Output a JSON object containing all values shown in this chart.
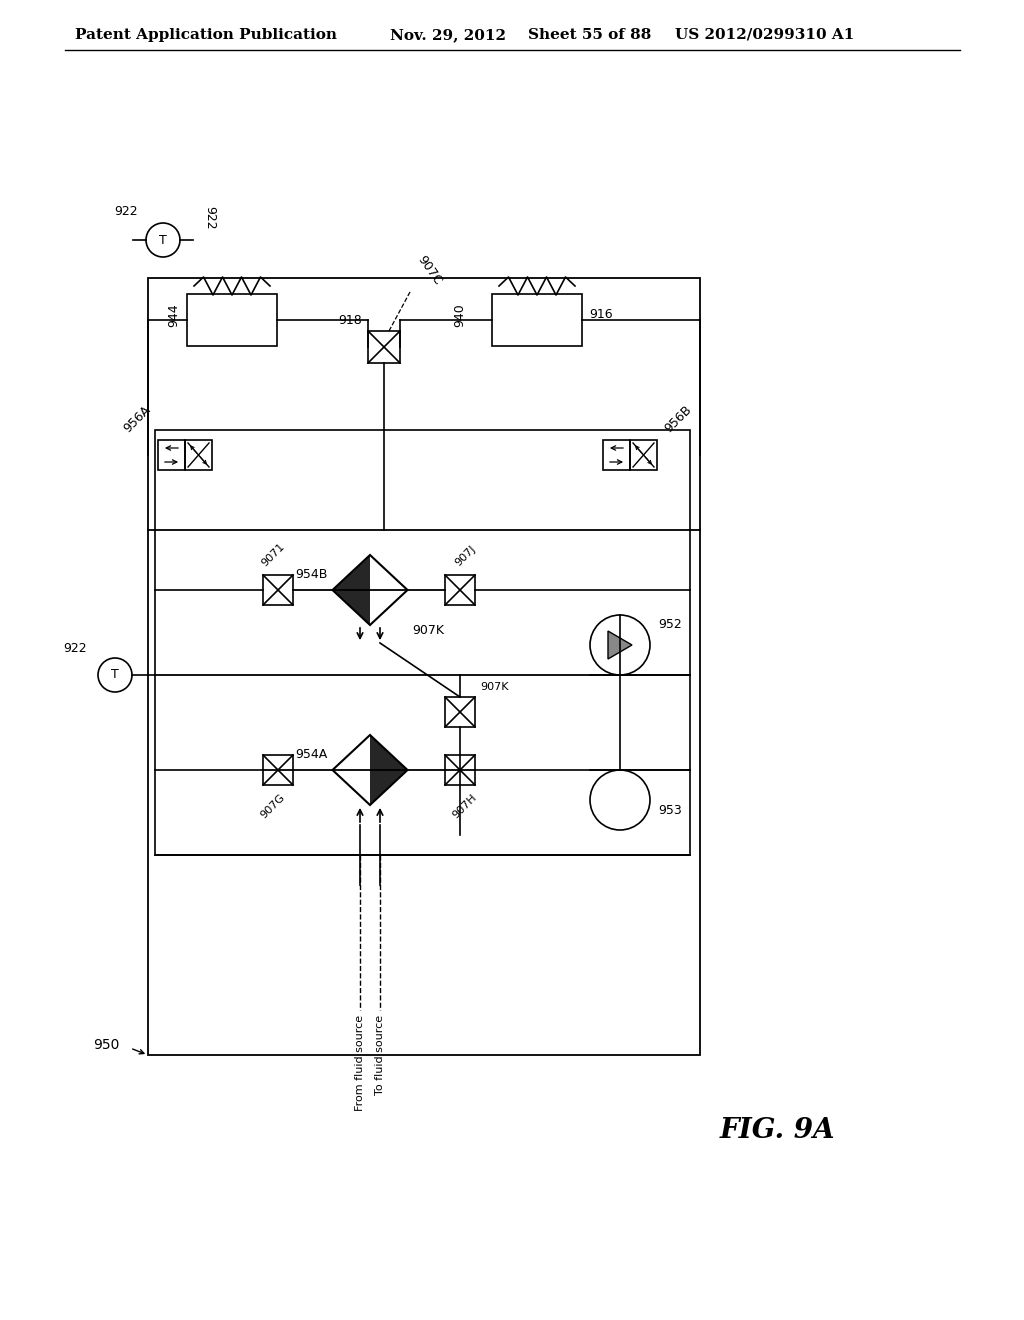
{
  "bg_color": "#ffffff",
  "header_text": "Patent Application Publication",
  "header_date": "Nov. 29, 2012",
  "header_sheet": "Sheet 55 of 88",
  "header_patent": "US 2012/0299310 A1",
  "fig_label": "FIG. 9A",
  "main_label": "950"
}
